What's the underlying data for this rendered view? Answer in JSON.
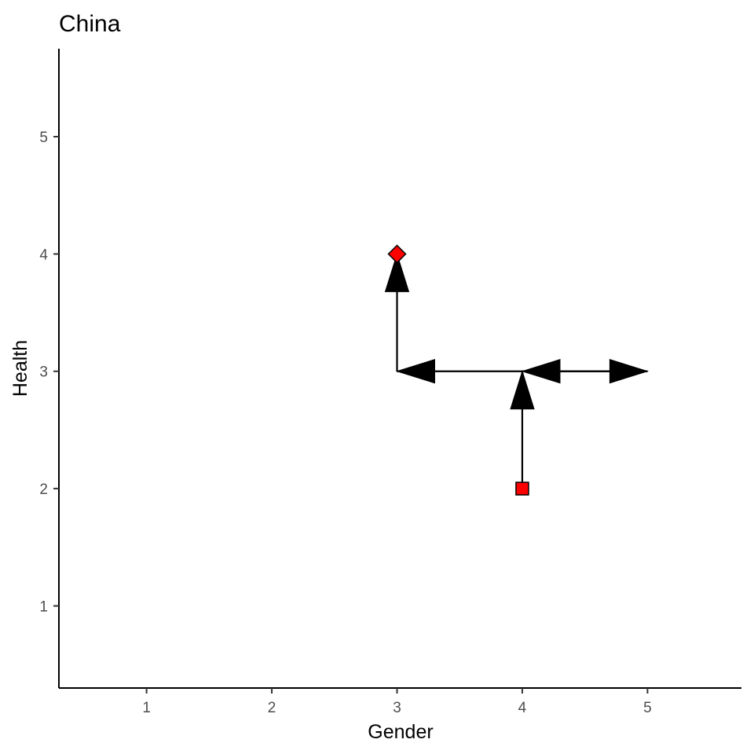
{
  "chart_data": {
    "type": "line",
    "title": "China",
    "xlabel": "Gender",
    "ylabel": "Health",
    "xlim": [
      0.3,
      5.75
    ],
    "ylim": [
      0.3,
      5.75
    ],
    "x_ticks": [
      1,
      2,
      3,
      4,
      5
    ],
    "y_ticks": [
      1,
      2,
      3,
      4,
      5
    ],
    "grid": false,
    "legend": "none",
    "colors": {
      "marker_fill": "#ff0000",
      "line": "#000000"
    },
    "arrows": [
      {
        "from": [
          4,
          2
        ],
        "to": [
          4,
          3
        ]
      },
      {
        "from": [
          4,
          3
        ],
        "to": [
          3,
          3
        ]
      },
      {
        "from": [
          3,
          3
        ],
        "to": [
          3,
          4
        ]
      },
      {
        "from": [
          5,
          3
        ],
        "to": [
          4,
          3
        ]
      },
      {
        "from": [
          4,
          3
        ],
        "to": [
          5,
          3
        ]
      }
    ],
    "points": [
      {
        "x": 4,
        "y": 2,
        "shape": "square"
      },
      {
        "x": 3,
        "y": 4,
        "shape": "diamond"
      }
    ]
  }
}
